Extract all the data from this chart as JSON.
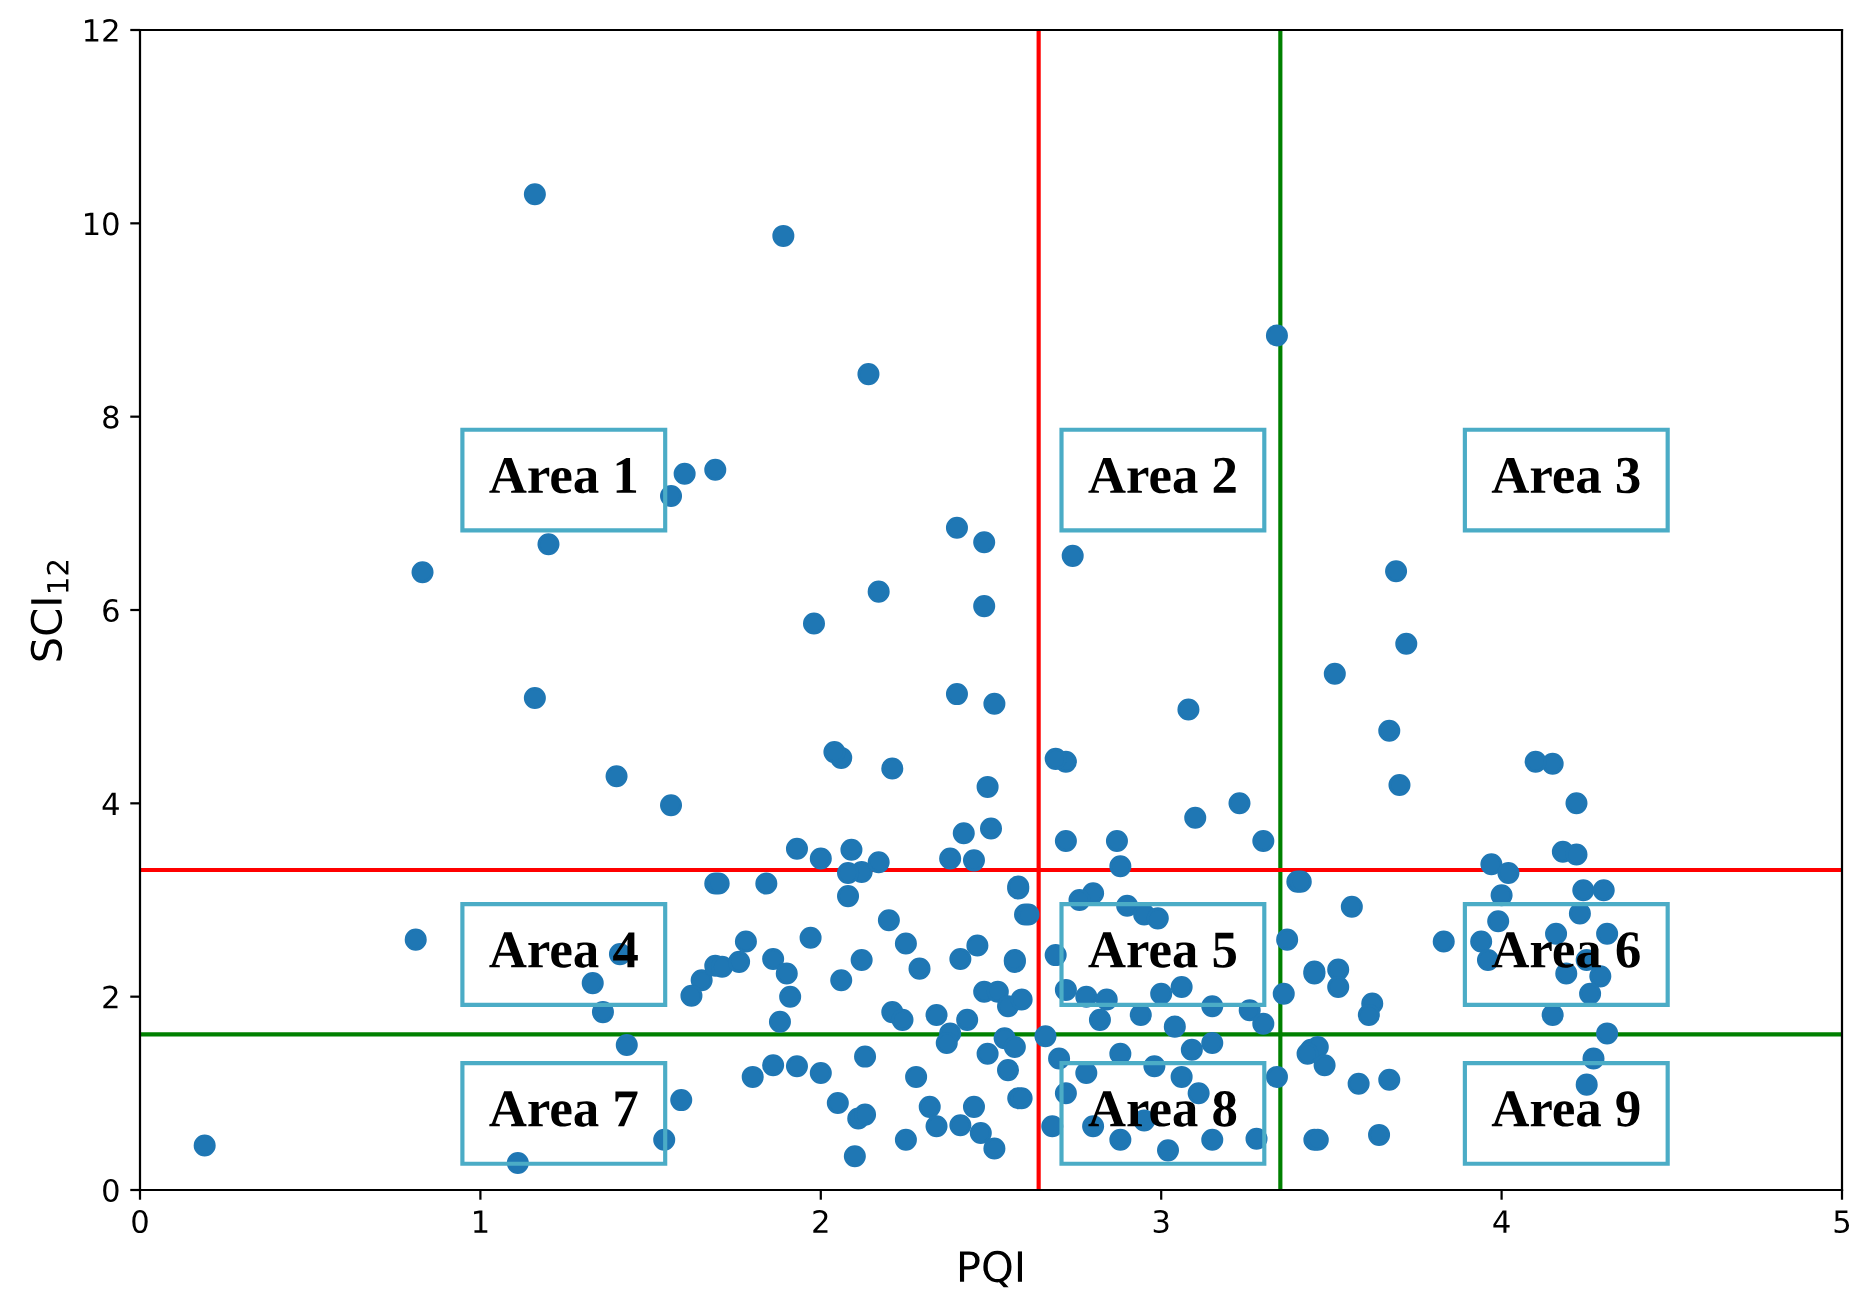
{
  "chart_data": {
    "type": "scatter",
    "xlabel": "PQI",
    "ylabel": "SCI$_{12}$",
    "xlim": [
      0,
      5
    ],
    "ylim": [
      0,
      12
    ],
    "xticks": [
      0,
      1,
      2,
      3,
      4,
      5
    ],
    "yticks": [
      0,
      2,
      4,
      6,
      8,
      10,
      12
    ],
    "grid": false,
    "legend": false,
    "marker": "circle",
    "series": [
      {
        "color": "#1f77b4",
        "x": [
          1.16,
          1.89,
          2.14,
          3.34,
          1.6,
          1.69,
          1.56,
          1.2,
          0.83,
          1.16,
          2.4,
          2.48,
          2.74,
          1.98,
          2.17,
          2.48,
          2.4,
          2.51,
          3.08,
          3.69,
          3.72,
          3.51,
          3.67,
          2.06,
          4.15,
          2.72,
          1.4,
          1.56,
          1.69,
          0.81,
          1.41,
          1.33,
          1.36,
          1.43,
          1.65,
          1.62,
          1.69,
          1.59,
          1.54,
          1.11,
          0.19,
          2.04,
          2.21,
          2.49,
          2.42,
          2.5,
          1.93,
          2.0,
          2.09,
          2.12,
          2.17,
          2.08,
          2.38,
          2.45,
          1.7,
          1.84,
          2.08,
          2.58,
          2.6,
          2.2,
          2.25,
          1.97,
          1.78,
          1.71,
          1.76,
          1.86,
          1.9,
          1.91,
          2.06,
          2.12,
          2.29,
          2.41,
          2.46,
          2.57,
          2.48,
          2.52,
          2.55,
          2.59,
          2.21,
          2.24,
          2.34,
          2.43,
          2.38,
          2.37,
          1.88,
          2.54,
          2.49,
          2.55,
          1.8,
          1.86,
          1.93,
          2.0,
          2.13,
          2.28,
          2.05,
          2.11,
          2.13,
          2.32,
          2.34,
          2.41,
          2.45,
          2.47,
          2.51,
          2.25,
          2.1,
          2.58,
          2.69,
          3.1,
          3.23,
          3.3,
          2.72,
          2.87,
          2.88,
          3.4,
          2.58,
          2.8,
          2.76,
          2.9,
          2.95,
          2.99,
          2.61,
          3.37,
          2.57,
          2.69,
          3.45,
          2.72,
          2.78,
          2.84,
          3.0,
          3.06,
          3.15,
          3.26,
          3.36,
          2.94,
          2.82,
          3.04,
          3.3,
          2.66,
          2.57,
          3.15,
          3.44,
          2.7,
          2.88,
          2.98,
          3.09,
          2.78,
          3.06,
          3.34,
          2.59,
          2.72,
          3.11,
          2.68,
          2.88,
          3.02,
          3.15,
          3.28,
          3.45,
          2.95,
          2.8,
          4.1,
          3.7,
          4.22,
          4.18,
          4.22,
          3.97,
          4.02,
          3.41,
          3.56,
          4.0,
          4.24,
          4.3,
          4.23,
          3.99,
          3.83,
          3.94,
          4.16,
          4.31,
          3.96,
          4.25,
          4.19,
          4.29,
          4.26,
          4.15,
          3.45,
          3.52,
          3.52,
          3.62,
          3.61,
          4.31,
          4.27,
          4.25,
          3.46,
          3.43,
          3.48,
          3.58,
          3.67,
          3.46,
          3.64
        ],
        "values": [
          10.3,
          9.87,
          8.44,
          8.84,
          7.41,
          7.45,
          7.18,
          6.68,
          6.39,
          5.09,
          6.85,
          6.7,
          6.56,
          5.86,
          6.19,
          6.04,
          5.13,
          5.03,
          4.97,
          6.4,
          5.65,
          5.34,
          4.75,
          4.47,
          4.41,
          4.43,
          4.28,
          3.98,
          3.17,
          2.59,
          2.44,
          2.14,
          1.84,
          1.5,
          2.17,
          2.01,
          2.32,
          0.93,
          0.52,
          0.28,
          0.46,
          4.53,
          4.36,
          4.17,
          3.69,
          3.74,
          3.53,
          3.43,
          3.52,
          3.29,
          3.39,
          3.28,
          3.43,
          3.41,
          3.17,
          3.17,
          3.04,
          3.12,
          2.85,
          2.79,
          2.55,
          2.61,
          2.57,
          2.31,
          2.36,
          2.39,
          2.24,
          2.0,
          2.17,
          2.38,
          2.29,
          2.39,
          2.53,
          2.36,
          2.05,
          2.05,
          1.9,
          1.97,
          1.84,
          1.76,
          1.81,
          1.76,
          1.62,
          1.52,
          1.74,
          1.57,
          1.41,
          1.24,
          1.17,
          1.29,
          1.28,
          1.21,
          1.38,
          1.17,
          0.9,
          0.74,
          0.78,
          0.86,
          0.66,
          0.67,
          0.86,
          0.59,
          0.43,
          0.52,
          0.35,
          0.95,
          4.46,
          3.85,
          4.0,
          3.61,
          3.61,
          3.61,
          3.35,
          3.19,
          3.14,
          3.07,
          3.0,
          2.94,
          2.85,
          2.81,
          2.85,
          2.59,
          2.38,
          2.43,
          2.26,
          2.07,
          2.0,
          1.97,
          2.03,
          2.1,
          1.9,
          1.86,
          2.03,
          1.81,
          1.76,
          1.69,
          1.72,
          1.59,
          1.48,
          1.52,
          1.45,
          1.36,
          1.41,
          1.28,
          1.45,
          1.21,
          1.17,
          1.17,
          0.95,
          1.0,
          1.0,
          0.66,
          0.52,
          0.41,
          0.52,
          0.53,
          0.52,
          0.72,
          0.66,
          4.43,
          4.19,
          4.0,
          3.5,
          3.47,
          3.37,
          3.28,
          3.19,
          2.93,
          3.05,
          3.1,
          3.1,
          2.86,
          2.78,
          2.57,
          2.57,
          2.65,
          2.65,
          2.38,
          2.38,
          2.24,
          2.21,
          2.03,
          1.81,
          2.24,
          2.28,
          2.1,
          1.93,
          1.81,
          1.62,
          1.36,
          1.09,
          1.48,
          1.41,
          1.29,
          1.1,
          1.14,
          0.52,
          0.57
        ]
      }
    ],
    "ref_lines": [
      {
        "axis": "x",
        "value": 2.64,
        "color": "#ff0000",
        "line_style": "solid"
      },
      {
        "axis": "x",
        "value": 3.35,
        "color": "#008000",
        "line_style": "solid"
      },
      {
        "axis": "y",
        "value": 3.31,
        "color": "#ff0000",
        "line_style": "solid"
      },
      {
        "axis": "y",
        "value": 1.61,
        "color": "#008000",
        "line_style": "solid"
      }
    ],
    "annotations": [
      "Area 1",
      "Area 2",
      "Area 3",
      "Area 4",
      "Area 5",
      "Area 6",
      "Area 7",
      "Area 8",
      "Area 9"
    ]
  }
}
